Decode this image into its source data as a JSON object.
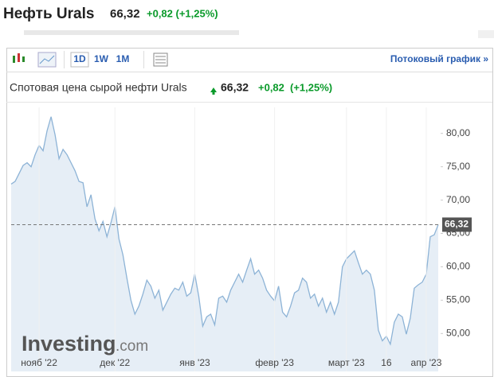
{
  "header": {
    "title": "Нефть Urals",
    "price": "66,32",
    "change": "+0,82 (+1,25%)"
  },
  "toolbar": {
    "periods": [
      "1D",
      "1W",
      "1M"
    ],
    "stream_link": "Потоковый график »"
  },
  "chart_data": {
    "type": "area",
    "title": "Спотовая цена сырой нефти Urals",
    "price": "66,32",
    "change": "+0,82",
    "change_pct": "(+1,25%)",
    "watermark": "Investing",
    "watermark_suffix": ".com",
    "color": "#8db3d6",
    "fill": "#e6eef6",
    "grid": false,
    "categories": [
      null,
      null,
      null,
      null,
      null,
      null,
      null,
      "нояб '22",
      null,
      null,
      null,
      null,
      null,
      null,
      null,
      null,
      null,
      null,
      null,
      null,
      null,
      null,
      null,
      null,
      null,
      null,
      "дек '22",
      null,
      null,
      null,
      null,
      null,
      null,
      null,
      null,
      null,
      null,
      null,
      null,
      null,
      null,
      null,
      null,
      null,
      null,
      null,
      "янв '23",
      null,
      null,
      null,
      null,
      null,
      null,
      null,
      null,
      null,
      null,
      null,
      null,
      null,
      null,
      null,
      null,
      null,
      null,
      null,
      "февр '23",
      null,
      null,
      null,
      null,
      null,
      null,
      null,
      null,
      null,
      null,
      null,
      null,
      null,
      null,
      null,
      null,
      null,
      "март '23",
      null,
      null,
      null,
      null,
      null,
      null,
      null,
      null,
      null,
      "16",
      null,
      null,
      null,
      null,
      null,
      null,
      null,
      null,
      null,
      "апр '23",
      null,
      null,
      null
    ],
    "values": [
      72.4,
      72.8,
      74,
      75.2,
      75.6,
      75,
      76.8,
      78.2,
      77.4,
      80.4,
      82.5,
      79.8,
      76.2,
      77.6,
      76.8,
      75.6,
      74.4,
      72.8,
      72.6,
      69,
      70.8,
      67.2,
      65.4,
      66.8,
      64.5,
      66.6,
      69,
      64.2,
      61.8,
      58.3,
      55,
      52.9,
      54.1,
      55.9,
      58,
      57.1,
      55.3,
      56.5,
      53.5,
      54.7,
      55.9,
      56.8,
      56.5,
      57.7,
      55.6,
      56.1,
      58.9,
      55.6,
      51.1,
      52.5,
      52.9,
      51.3,
      55.3,
      55.6,
      54.7,
      56.5,
      57.7,
      58.9,
      57.7,
      59.5,
      61.2,
      58.9,
      59.5,
      58.3,
      56.5,
      55.6,
      54.9,
      57.1,
      53.2,
      52.5,
      54.1,
      56.1,
      56.5,
      58.3,
      57.7,
      55.3,
      55.9,
      54.1,
      55.3,
      53.2,
      54.7,
      52.9,
      54.7,
      60,
      61.2,
      61.8,
      62.4,
      60.6,
      58.9,
      59.5,
      58.9,
      56.5,
      50.5,
      48.9,
      49.6,
      48.4,
      51.7,
      52.9,
      52.5,
      49.9,
      52.3,
      56.8,
      57.3,
      57.7,
      58.9,
      64.5,
      64.8,
      66.32
    ],
    "ylim": [
      46.7,
      83.9
    ],
    "yticks": [
      {
        "value": 50,
        "label": "50,00"
      },
      {
        "value": 55,
        "label": "55,00"
      },
      {
        "value": 60,
        "label": "60,00"
      },
      {
        "value": 65,
        "label": "65,00"
      },
      {
        "value": 70,
        "label": "70,00"
      },
      {
        "value": 75,
        "label": "75,00"
      },
      {
        "value": 80,
        "label": "80,00"
      }
    ],
    "last_value": {
      "value": 66.32,
      "label": "66,32"
    }
  }
}
